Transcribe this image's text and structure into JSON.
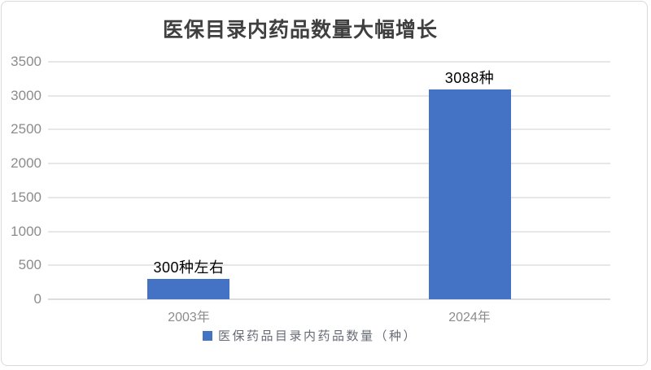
{
  "window": {
    "background": "#ffffff",
    "border_color": "#d9d9d9"
  },
  "chart_data": {
    "type": "bar",
    "title": "医保目录内药品数量大幅增长",
    "categories": [
      "2003年",
      "2024年"
    ],
    "series": [
      {
        "name": "医保药品目录内药品数量（种）",
        "values": [
          300,
          3088
        ],
        "data_labels": [
          "300种左右",
          "3088种"
        ],
        "color": "#4472c4"
      }
    ],
    "xlabel": "",
    "ylabel": "",
    "ylim": [
      0,
      3500
    ],
    "yticks": [
      0,
      500,
      1000,
      1500,
      2000,
      2500,
      3000,
      3500
    ],
    "grid": true,
    "legend_position": "bottom",
    "legend": {
      "label": "医保药品目录内药品数量（种）",
      "swatch_color": "#4472c4"
    },
    "colors": {
      "bar": "#4472c4",
      "gridline": "#e7e7e7",
      "axis_text": "#8c8c8c",
      "title_text": "#3f3f3f",
      "data_label_text": "#000000"
    }
  }
}
